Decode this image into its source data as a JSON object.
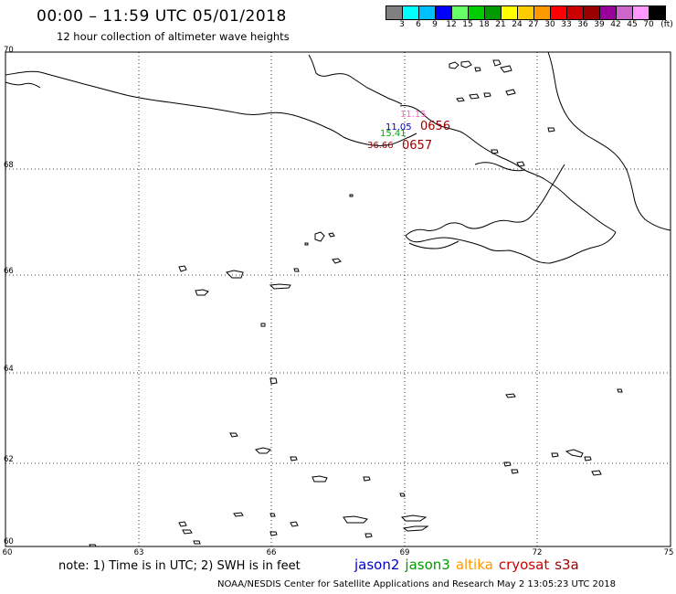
{
  "header": {
    "title": "00:00 – 11:59 UTC 05/01/2018",
    "subtitle": "12 hour collection of altimeter wave heights"
  },
  "colorbar": {
    "colors": [
      "#808080",
      "#00ffff",
      "#00bfff",
      "#0000ff",
      "#66ff66",
      "#00cc00",
      "#009900",
      "#ffff00",
      "#ffcc00",
      "#ff9900",
      "#ff0000",
      "#cc0000",
      "#990000",
      "#990099",
      "#cc66cc",
      "#ff99ff",
      "#000000"
    ],
    "labels": [
      "3",
      "6",
      "9",
      "12",
      "15",
      "18",
      "21",
      "24",
      "27",
      "30",
      "33",
      "36",
      "39",
      "42",
      "45",
      "70"
    ],
    "unit": "(ft)"
  },
  "map": {
    "lat_labels": [
      "70",
      "68",
      "66",
      "64",
      "62",
      "60"
    ],
    "lon_labels": [
      "60",
      "63",
      "66",
      "69",
      "72",
      "75"
    ],
    "observations": [
      {
        "text": "11.15",
        "color": "#ff66cc"
      },
      {
        "text": "0656",
        "color": "#990000"
      },
      {
        "text": "11.05",
        "color": "#0000cc"
      },
      {
        "text": "15.41",
        "color": "#00aa00"
      },
      {
        "text": "36.66",
        "color": "#990000"
      },
      {
        "text": "0657",
        "color": "#990000"
      }
    ]
  },
  "footer": {
    "note": "note: 1) Time is in UTC; 2) SWH is in feet",
    "legend": [
      {
        "name": "jason2",
        "color": "#0000cc"
      },
      {
        "name": "jason3",
        "color": "#009900"
      },
      {
        "name": "altika",
        "color": "#ff9900"
      },
      {
        "name": "cryosat",
        "color": "#cc0000"
      },
      {
        "name": "s3a",
        "color": "#990000"
      }
    ],
    "credit": "NOAA/NESDIS Center for Satellite Applications and Research    May  2 13:05:23 UTC 2018"
  }
}
